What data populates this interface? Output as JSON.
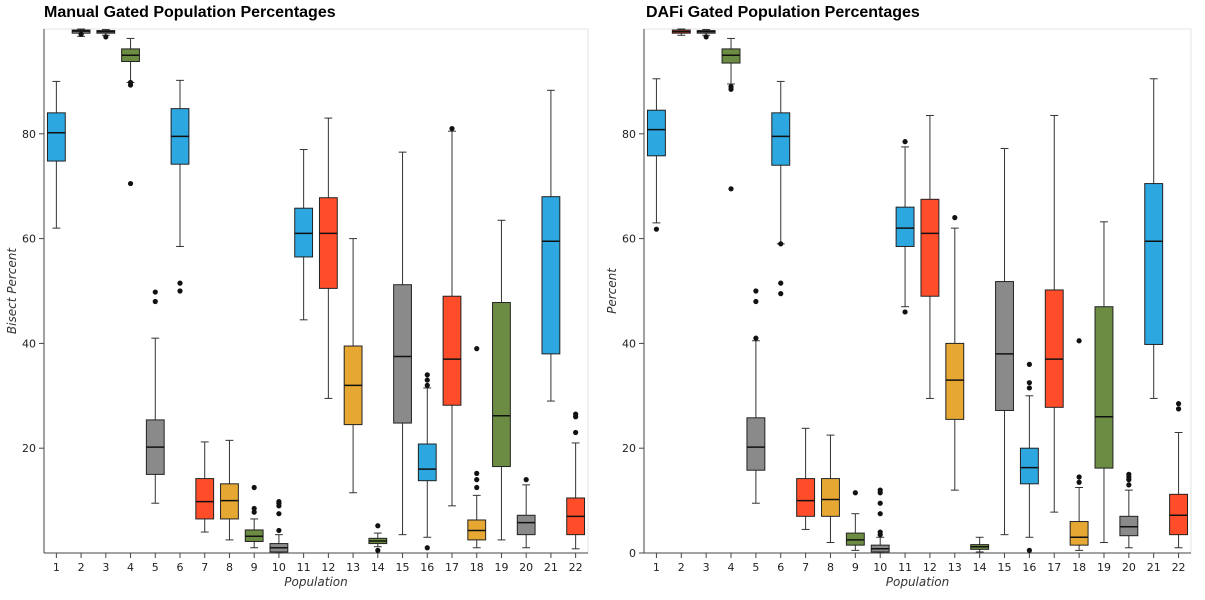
{
  "chart_data": [
    {
      "type": "box",
      "title": "Manual Gated Population Percentages",
      "xlabel": "Population",
      "ylabel": "Bisect Percent",
      "ylim": [
        0,
        100
      ],
      "yticks": [
        20,
        40,
        60,
        80
      ],
      "categories": [
        "1",
        "2",
        "3",
        "4",
        "5",
        "6",
        "7",
        "8",
        "9",
        "10",
        "11",
        "12",
        "13",
        "14",
        "15",
        "16",
        "17",
        "18",
        "19",
        "20",
        "21",
        "22"
      ],
      "boxes": [
        {
          "cat": "1",
          "color": "#2ca7e0",
          "min": 62,
          "q1": 74.8,
          "median": 80.2,
          "q3": 84,
          "max": 90,
          "outliers": []
        },
        {
          "cat": "2",
          "color": "#8a8a8a",
          "min": 98.6,
          "q1": 99.2,
          "median": 99.6,
          "q3": 99.8,
          "max": 100,
          "outliers": [
            99
          ]
        },
        {
          "cat": "3",
          "color": "#8a8a8a",
          "min": 98.8,
          "q1": 99.2,
          "median": 99.5,
          "q3": 99.7,
          "max": 99.9,
          "outliers": [
            98.5
          ]
        },
        {
          "cat": "4",
          "color": "#6b8c42",
          "min": 89.8,
          "q1": 93.8,
          "median": 95,
          "q3": 96.2,
          "max": 98.2,
          "outliers": [
            70.5,
            89.3,
            89.8
          ]
        },
        {
          "cat": "5",
          "color": "#8a8a8a",
          "min": 9.5,
          "q1": 15,
          "median": 20.2,
          "q3": 25.4,
          "max": 41,
          "outliers": [
            48,
            49.8
          ]
        },
        {
          "cat": "6",
          "color": "#2ca7e0",
          "min": 58.5,
          "q1": 74.2,
          "median": 79.5,
          "q3": 84.8,
          "max": 90.2,
          "outliers": [
            50,
            51.5
          ]
        },
        {
          "cat": "7",
          "color": "#ff4d2a",
          "min": 4,
          "q1": 6.5,
          "median": 9.8,
          "q3": 14.2,
          "max": 21.2,
          "outliers": []
        },
        {
          "cat": "8",
          "color": "#e6a832",
          "min": 2.5,
          "q1": 6.5,
          "median": 10,
          "q3": 13.2,
          "max": 21.5,
          "outliers": []
        },
        {
          "cat": "9",
          "color": "#6b8c42",
          "min": 1,
          "q1": 2.2,
          "median": 3.2,
          "q3": 4.4,
          "max": 6.5,
          "outliers": [
            7.8,
            8.5,
            12.5
          ]
        },
        {
          "cat": "10",
          "color": "#8a8a8a",
          "min": 0,
          "q1": 0.2,
          "median": 1,
          "q3": 1.8,
          "max": 3.5,
          "outliers": [
            4.3,
            7.5,
            9,
            9.5,
            9.8
          ]
        },
        {
          "cat": "11",
          "color": "#2ca7e0",
          "min": 44.5,
          "q1": 56.5,
          "median": 61,
          "q3": 65.8,
          "max": 77,
          "outliers": []
        },
        {
          "cat": "12",
          "color": "#ff4d2a",
          "min": 29.5,
          "q1": 50.5,
          "median": 61,
          "q3": 67.8,
          "max": 83,
          "outliers": []
        },
        {
          "cat": "13",
          "color": "#e6a832",
          "min": 11.5,
          "q1": 24.5,
          "median": 32,
          "q3": 39.5,
          "max": 60,
          "outliers": []
        },
        {
          "cat": "14",
          "color": "#6b8c42",
          "min": 1.2,
          "q1": 1.8,
          "median": 2.3,
          "q3": 2.8,
          "max": 3.8,
          "outliers": [
            0.5,
            5.2
          ]
        },
        {
          "cat": "15",
          "color": "#8a8a8a",
          "min": 3.5,
          "q1": 24.8,
          "median": 37.5,
          "q3": 51.2,
          "max": 76.5,
          "outliers": []
        },
        {
          "cat": "16",
          "color": "#2ca7e0",
          "min": 3,
          "q1": 13.8,
          "median": 16,
          "q3": 20.8,
          "max": 31.5,
          "outliers": [
            1,
            32,
            33,
            34
          ]
        },
        {
          "cat": "17",
          "color": "#ff4d2a",
          "min": 9,
          "q1": 28.2,
          "median": 37,
          "q3": 49,
          "max": 80.5,
          "outliers": [
            81
          ]
        },
        {
          "cat": "18",
          "color": "#e6a832",
          "min": 1,
          "q1": 2.5,
          "median": 4.3,
          "q3": 6.3,
          "max": 11,
          "outliers": [
            12.5,
            14,
            15.2,
            39
          ]
        },
        {
          "cat": "19",
          "color": "#6b8c42",
          "min": 2.5,
          "q1": 16.5,
          "median": 26.2,
          "q3": 47.8,
          "max": 63.5,
          "outliers": []
        },
        {
          "cat": "20",
          "color": "#8a8a8a",
          "min": 1,
          "q1": 3.5,
          "median": 5.8,
          "q3": 7.2,
          "max": 13,
          "outliers": [
            14
          ]
        },
        {
          "cat": "21",
          "color": "#2ca7e0",
          "min": 29,
          "q1": 38,
          "median": 59.5,
          "q3": 68,
          "max": 88.3,
          "outliers": []
        },
        {
          "cat": "22",
          "color": "#ff4d2a",
          "min": 0.8,
          "q1": 3.5,
          "median": 7,
          "q3": 10.5,
          "max": 21,
          "outliers": [
            23,
            26,
            26.5
          ]
        }
      ]
    },
    {
      "type": "box",
      "title": "DAFi Gated Population Percentages",
      "xlabel": "Population",
      "ylabel": "Percent",
      "ylim": [
        0,
        100
      ],
      "yticks": [
        0,
        20,
        40,
        60,
        80
      ],
      "categories": [
        "1",
        "2",
        "3",
        "4",
        "5",
        "6",
        "7",
        "8",
        "9",
        "10",
        "11",
        "12",
        "13",
        "14",
        "15",
        "16",
        "17",
        "18",
        "19",
        "20",
        "21",
        "22"
      ],
      "boxes": [
        {
          "cat": "1",
          "color": "#2ca7e0",
          "min": 63,
          "q1": 75.8,
          "median": 80.8,
          "q3": 84.5,
          "max": 90.5,
          "outliers": [
            61.8
          ]
        },
        {
          "cat": "2",
          "color": "#ff4d2a",
          "min": 98.8,
          "q1": 99.2,
          "median": 99.5,
          "q3": 99.8,
          "max": 100,
          "outliers": []
        },
        {
          "cat": "3",
          "color": "#8a8a8a",
          "min": 98.8,
          "q1": 99.2,
          "median": 99.5,
          "q3": 99.7,
          "max": 99.9,
          "outliers": [
            98.5
          ]
        },
        {
          "cat": "4",
          "color": "#6b8c42",
          "min": 89.5,
          "q1": 93.5,
          "median": 95,
          "q3": 96.2,
          "max": 98.2,
          "outliers": [
            69.5,
            88.5,
            89
          ]
        },
        {
          "cat": "5",
          "color": "#8a8a8a",
          "min": 9.5,
          "q1": 15.8,
          "median": 20.2,
          "q3": 25.8,
          "max": 40.5,
          "outliers": [
            41,
            48,
            50
          ]
        },
        {
          "cat": "6",
          "color": "#2ca7e0",
          "min": 59,
          "q1": 74,
          "median": 79.5,
          "q3": 84,
          "max": 90,
          "outliers": [
            49.5,
            51.5,
            59
          ]
        },
        {
          "cat": "7",
          "color": "#ff4d2a",
          "min": 4.5,
          "q1": 7,
          "median": 10,
          "q3": 14.2,
          "max": 23.8,
          "outliers": []
        },
        {
          "cat": "8",
          "color": "#e6a832",
          "min": 2,
          "q1": 7,
          "median": 10.2,
          "q3": 14.2,
          "max": 22.5,
          "outliers": []
        },
        {
          "cat": "9",
          "color": "#6b8c42",
          "min": 0.5,
          "q1": 1.5,
          "median": 2.5,
          "q3": 3.8,
          "max": 7.5,
          "outliers": [
            11.5
          ]
        },
        {
          "cat": "10",
          "color": "#8a8a8a",
          "min": 0,
          "q1": 0.2,
          "median": 0.8,
          "q3": 1.5,
          "max": 3,
          "outliers": [
            3.5,
            4,
            7.5,
            9.5,
            11.5,
            12
          ]
        },
        {
          "cat": "11",
          "color": "#2ca7e0",
          "min": 47,
          "q1": 58.5,
          "median": 62,
          "q3": 66,
          "max": 77.5,
          "outliers": [
            46,
            78.5
          ]
        },
        {
          "cat": "12",
          "color": "#ff4d2a",
          "min": 29.5,
          "q1": 49,
          "median": 61,
          "q3": 67.5,
          "max": 83.5,
          "outliers": []
        },
        {
          "cat": "13",
          "color": "#e6a832",
          "min": 12,
          "q1": 25.5,
          "median": 33,
          "q3": 40,
          "max": 62,
          "outliers": [
            64
          ]
        },
        {
          "cat": "14",
          "color": "#6b8c42",
          "min": 0.2,
          "q1": 0.7,
          "median": 1.2,
          "q3": 1.6,
          "max": 3,
          "outliers": []
        },
        {
          "cat": "15",
          "color": "#8a8a8a",
          "min": 3.5,
          "q1": 27.2,
          "median": 38,
          "q3": 51.8,
          "max": 77.2,
          "outliers": []
        },
        {
          "cat": "16",
          "color": "#2ca7e0",
          "min": 3,
          "q1": 13.2,
          "median": 16.3,
          "q3": 20,
          "max": 30,
          "outliers": [
            0.5,
            31.5,
            32.5,
            36
          ]
        },
        {
          "cat": "17",
          "color": "#ff4d2a",
          "min": 7.8,
          "q1": 27.8,
          "median": 37,
          "q3": 50.2,
          "max": 83.5,
          "outliers": []
        },
        {
          "cat": "18",
          "color": "#e6a832",
          "min": 0.5,
          "q1": 1.5,
          "median": 3,
          "q3": 6,
          "max": 12.5,
          "outliers": [
            13.5,
            14.5,
            40.5
          ]
        },
        {
          "cat": "19",
          "color": "#6b8c42",
          "min": 2,
          "q1": 16.2,
          "median": 26,
          "q3": 47,
          "max": 63.2,
          "outliers": []
        },
        {
          "cat": "20",
          "color": "#8a8a8a",
          "min": 1,
          "q1": 3.3,
          "median": 5,
          "q3": 7,
          "max": 12,
          "outliers": [
            13,
            14,
            14.5,
            15
          ]
        },
        {
          "cat": "21",
          "color": "#2ca7e0",
          "min": 29.5,
          "q1": 39.8,
          "median": 59.5,
          "q3": 70.5,
          "max": 90.5,
          "outliers": []
        },
        {
          "cat": "22",
          "color": "#ff4d2a",
          "min": 1,
          "q1": 3.5,
          "median": 7.2,
          "q3": 11.2,
          "max": 23,
          "outliers": [
            27.5,
            28.5
          ]
        }
      ]
    }
  ]
}
